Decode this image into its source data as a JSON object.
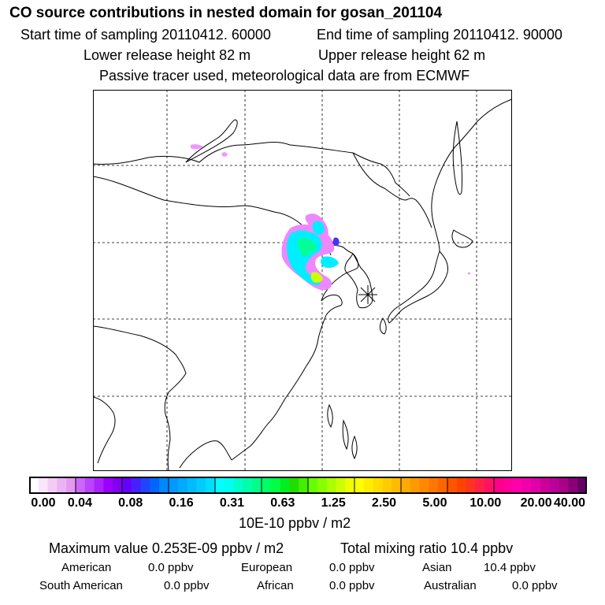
{
  "header": {
    "title": "CO  source contributions in nested domain for gosan_201104",
    "start_time": "Start time of sampling 20110412. 60000",
    "end_time": "End time of sampling 20110412. 90000",
    "lower_height": "Lower release height   82 m",
    "upper_height": "Upper release height   62 m",
    "tracer_note": "Passive tracer used, meteorological data are from ECMWF"
  },
  "map": {
    "station_marker": "asterisk-icon",
    "colors": {
      "coastline": "#000000",
      "grid": "#000000",
      "background": "#ffffff"
    }
  },
  "colorbar": {
    "ticks": [
      "0.00",
      "0.04",
      "0.08",
      "0.16",
      "0.31",
      "0.63",
      "1.25",
      "2.50",
      "5.00",
      "10.00",
      "20.00",
      "40.00"
    ],
    "colors": [
      "#ffffff",
      "#f9e6fb",
      "#f2ccf7",
      "#ebb3f3",
      "#e399ef",
      "#cc66ff",
      "#bb44ff",
      "#aa22ff",
      "#9900ff",
      "#8000f0",
      "#6600ff",
      "#4422ff",
      "#2244ff",
      "#0066ff",
      "#0088ff",
      "#0099ff",
      "#00aaff",
      "#00bbff",
      "#00ccff",
      "#00ddff",
      "#00ffff",
      "#00ffee",
      "#00ffcc",
      "#00ffaa",
      "#00ff88",
      "#00ff66",
      "#00ff44",
      "#00ee22",
      "#22dd00",
      "#44ee00",
      "#66ff00",
      "#88ff00",
      "#aaff00",
      "#ccff00",
      "#eeff00",
      "#ffff00",
      "#ffee00",
      "#ffdd00",
      "#ffcc00",
      "#ffbb00",
      "#ffaa00",
      "#ff9900",
      "#ff8800",
      "#ff7700",
      "#ff6600",
      "#ff5500",
      "#ff4400",
      "#ff3322",
      "#ff2244",
      "#ff1166",
      "#ff0088",
      "#ff0099",
      "#ff00aa",
      "#f000aa",
      "#e000aa",
      "#cc0099",
      "#bb0099",
      "#aa0088",
      "#880077",
      "#660066"
    ],
    "units": "10E-10 ppbv / m2"
  },
  "summary": {
    "max_value": "Maximum value  0.253E-09 ppbv / m2",
    "total_ratio": "Total mixing ratio       10.4 ppbv",
    "regions": [
      {
        "label": "American",
        "value": "0.0 ppbv"
      },
      {
        "label": "European",
        "value": "0.0 ppbv"
      },
      {
        "label": "Asian",
        "value": "10.4 ppbv"
      },
      {
        "label": "South American",
        "value": "0.0 ppbv"
      },
      {
        "label": "African",
        "value": "0.0 ppbv"
      },
      {
        "label": "Australian",
        "value": "0.0 ppbv"
      }
    ]
  }
}
